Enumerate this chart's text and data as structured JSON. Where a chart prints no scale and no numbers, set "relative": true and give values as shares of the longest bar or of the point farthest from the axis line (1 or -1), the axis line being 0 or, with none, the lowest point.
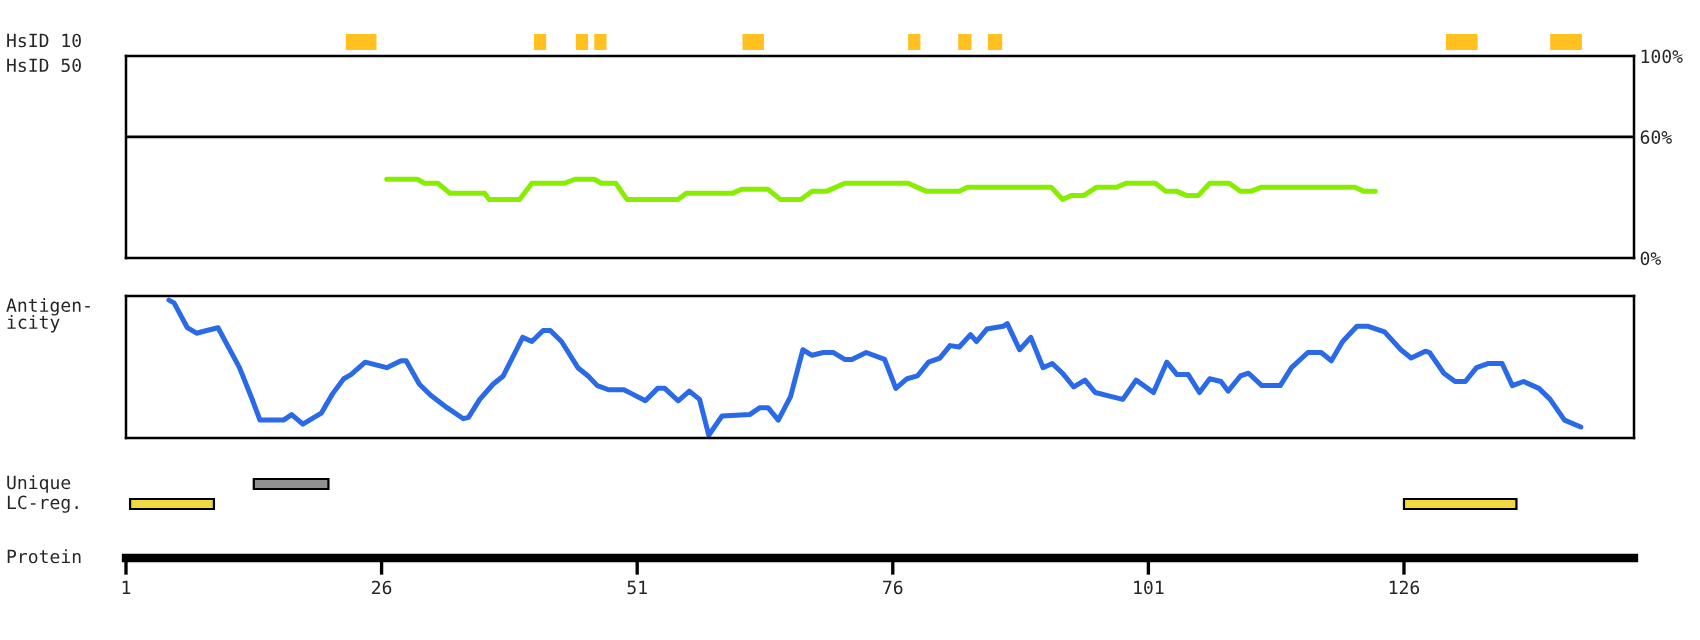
{
  "chart_data": [
    {
      "type": "bar",
      "orientation": "horizontal",
      "categories": [
        "HsID 10"
      ],
      "xlim": [
        1,
        148.5
      ],
      "tick_labels": false,
      "series": [
        {
          "color": "#ffc020",
          "base": [
            22.5
          ],
          "values": [
            3
          ]
        },
        {
          "color": "#ffc020",
          "base": [
            40.9
          ],
          "values": [
            1.2
          ]
        },
        {
          "color": "#ffc020",
          "base": [
            45
          ],
          "values": [
            1.2
          ]
        },
        {
          "color": "#ffc020",
          "base": [
            46.8
          ],
          "values": [
            1.2
          ]
        },
        {
          "color": "#ffc020",
          "base": [
            61.3
          ],
          "values": [
            2.1
          ]
        },
        {
          "color": "#ffc020",
          "base": [
            77.5
          ],
          "values": [
            1.2
          ]
        },
        {
          "color": "#ffc020",
          "base": [
            82.4
          ],
          "values": [
            1.3
          ]
        },
        {
          "color": "#ffc020",
          "base": [
            85.3
          ],
          "values": [
            1.4
          ]
        },
        {
          "color": "#ffc020",
          "base": [
            130.1
          ],
          "values": [
            3.1
          ]
        },
        {
          "color": "#ffc020",
          "base": [
            140.3
          ],
          "values": [
            3.1
          ]
        }
      ]
    },
    {
      "type": "line",
      "ylabel": "HsID 50",
      "xlim": [
        1,
        148.5
      ],
      "ylim": [
        0,
        100
      ],
      "yticks": [
        {
          "value": 0,
          "label": "0%"
        },
        {
          "value": 60,
          "label": "60%"
        },
        {
          "value": 100,
          "label": "100%"
        }
      ],
      "tick_labels": "y",
      "ref_lines": [
        {
          "axis": "y",
          "value": 60,
          "color": "#000000"
        }
      ],
      "series": [
        {
          "color": "#88ee00",
          "x": [
            26.5,
            29.5,
            30.2,
            31.5,
            32.7,
            36.1,
            36.5,
            39.5,
            40.7,
            43.9,
            44.9,
            46.8,
            47.5,
            48.9,
            50.0,
            55.0,
            55.8,
            60.3,
            61.2,
            63.8,
            65.0,
            67.0,
            68.1,
            69.5,
            71.3,
            77.5,
            79.3,
            82.5,
            83.3,
            91.5,
            92.6,
            93.5,
            94.7,
            95.9,
            97.9,
            98.8,
            101.7,
            102.7,
            103.8,
            104.7,
            105.9,
            107.0,
            108.9,
            110.0,
            111.0,
            112.0,
            121.2,
            122.1,
            123.2
          ],
          "values": [
            39,
            39,
            37,
            37,
            32,
            32,
            29,
            29,
            37,
            37,
            39,
            39,
            37,
            37,
            29,
            29,
            32,
            32,
            34,
            34,
            29,
            29,
            33,
            33,
            37,
            37,
            33,
            33,
            35,
            35,
            29,
            31,
            31,
            35,
            35,
            37,
            37,
            33,
            33,
            31,
            31,
            37,
            37,
            33,
            33,
            35,
            35,
            33,
            33
          ]
        }
      ]
    },
    {
      "type": "line",
      "ylabel": "Antigen-\nicity",
      "relative": true,
      "xlim": [
        1,
        148.5
      ],
      "tick_labels": false,
      "series": [
        {
          "color": "#2a6ae8",
          "x": [
            5.2,
            5.7,
            7.0,
            7.9,
            8.9,
            10.0,
            12.1,
            13.4,
            14.1,
            16.4,
            17.2,
            18.3,
            20.1,
            21.2,
            22.3,
            23.0,
            24.4,
            26.5,
            27.9,
            28.4,
            29.7,
            30.8,
            32.4,
            34.0,
            34.5,
            35.6,
            36.9,
            37.9,
            39.8,
            40.7,
            41.8,
            42.5,
            43.6,
            45.2,
            46.2,
            47.1,
            48.2,
            49.7,
            50.5,
            51.8,
            53.0,
            53.7,
            55.0,
            56.1,
            57.1,
            58.0,
            59.3,
            62.0,
            63.0,
            63.8,
            64.8,
            66.0,
            67.2,
            68.1,
            69.2,
            70.2,
            71.3,
            72.0,
            73.4,
            75.2,
            76.3,
            77.4,
            78.4,
            79.5,
            80.6,
            81.6,
            82.5,
            83.6,
            84.2,
            85.2,
            86.8,
            87.2,
            88.4,
            89.5,
            90.7,
            91.6,
            92.6,
            93.7,
            94.8,
            95.8,
            97.4,
            98.5,
            99.8,
            101.5,
            102.8,
            103.8,
            104.9,
            106.0,
            107.0,
            108.1,
            108.8,
            110.0,
            110.8,
            112.1,
            113.9,
            115.0,
            116.6,
            117.9,
            118.9,
            120.0,
            121.4,
            122.5,
            124.1,
            125.7,
            126.7,
            128.1,
            128.5,
            129.9,
            131.0,
            132.0,
            133.1,
            134.2,
            135.6,
            136.6,
            137.7,
            139.2,
            140.3,
            141.7,
            143.3
          ],
          "values": [
            1.0,
            0.98,
            0.8,
            0.76,
            0.78,
            0.8,
            0.51,
            0.27,
            0.13,
            0.13,
            0.17,
            0.1,
            0.18,
            0.32,
            0.43,
            0.46,
            0.55,
            0.51,
            0.56,
            0.56,
            0.39,
            0.31,
            0.22,
            0.14,
            0.15,
            0.28,
            0.39,
            0.45,
            0.73,
            0.7,
            0.78,
            0.78,
            0.7,
            0.51,
            0.45,
            0.38,
            0.35,
            0.35,
            0.32,
            0.27,
            0.36,
            0.36,
            0.27,
            0.34,
            0.28,
            0.02,
            0.16,
            0.17,
            0.22,
            0.22,
            0.13,
            0.3,
            0.64,
            0.6,
            0.62,
            0.62,
            0.57,
            0.57,
            0.62,
            0.57,
            0.36,
            0.43,
            0.45,
            0.55,
            0.58,
            0.67,
            0.66,
            0.75,
            0.7,
            0.79,
            0.81,
            0.83,
            0.64,
            0.73,
            0.51,
            0.54,
            0.47,
            0.37,
            0.42,
            0.33,
            0.3,
            0.28,
            0.42,
            0.33,
            0.55,
            0.46,
            0.46,
            0.33,
            0.43,
            0.41,
            0.34,
            0.45,
            0.47,
            0.38,
            0.38,
            0.51,
            0.62,
            0.62,
            0.56,
            0.7,
            0.81,
            0.81,
            0.77,
            0.64,
            0.58,
            0.63,
            0.62,
            0.47,
            0.41,
            0.41,
            0.51,
            0.54,
            0.54,
            0.38,
            0.41,
            0.36,
            0.28,
            0.13,
            0.08
          ]
        }
      ]
    },
    {
      "type": "bar",
      "orientation": "horizontal",
      "categories": [
        "Unique",
        "LC-reg."
      ],
      "xlabel": "Protein",
      "xlim": [
        1,
        148.5
      ],
      "xticks": [
        1,
        26,
        51,
        76,
        101,
        126
      ],
      "series": [
        {
          "color": "#909090",
          "base": [
            13.5,
            null
          ],
          "values": [
            7.3,
            null
          ]
        },
        {
          "color": "#f0d840",
          "base": [
            null,
            1.4
          ],
          "values": [
            null,
            8.2
          ]
        },
        {
          "color": "#f0d840",
          "base": [
            null,
            126
          ],
          "values": [
            null,
            11
          ]
        }
      ]
    }
  ]
}
